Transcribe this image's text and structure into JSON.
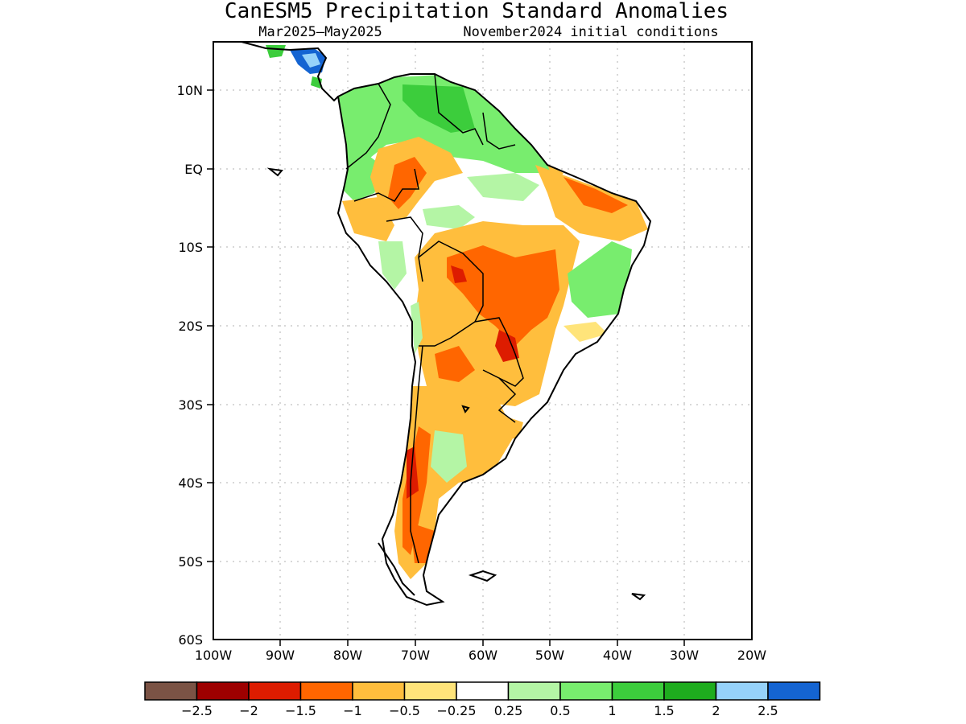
{
  "title": "CanESM5 Precipitation Standard Anomalies",
  "subtitle_left": "Mar2025—May2025",
  "subtitle_right": "November2024 initial conditions",
  "lat_labels": [
    "10N",
    "EQ",
    "10S",
    "20S",
    "30S",
    "40S",
    "50S",
    "60S"
  ],
  "lon_labels": [
    "100W",
    "90W",
    "80W",
    "70W",
    "60W",
    "50W",
    "40W",
    "30W",
    "20W"
  ],
  "legend": {
    "colors": [
      "#7b5345",
      "#9e0000",
      "#dd1c00",
      "#ff6600",
      "#ffbe3d",
      "#ffe47a",
      "#ffffff",
      "#b4f5a5",
      "#78ed6e",
      "#3ccd3c",
      "#1eac1e",
      "#96d2fa",
      "#1464d2"
    ],
    "labels": [
      "−2.5",
      "−2",
      "−1.5",
      "−1",
      "−0.5",
      "−0.25",
      "0.25",
      "0.5",
      "1",
      "1.5",
      "2",
      "2.5"
    ]
  }
}
